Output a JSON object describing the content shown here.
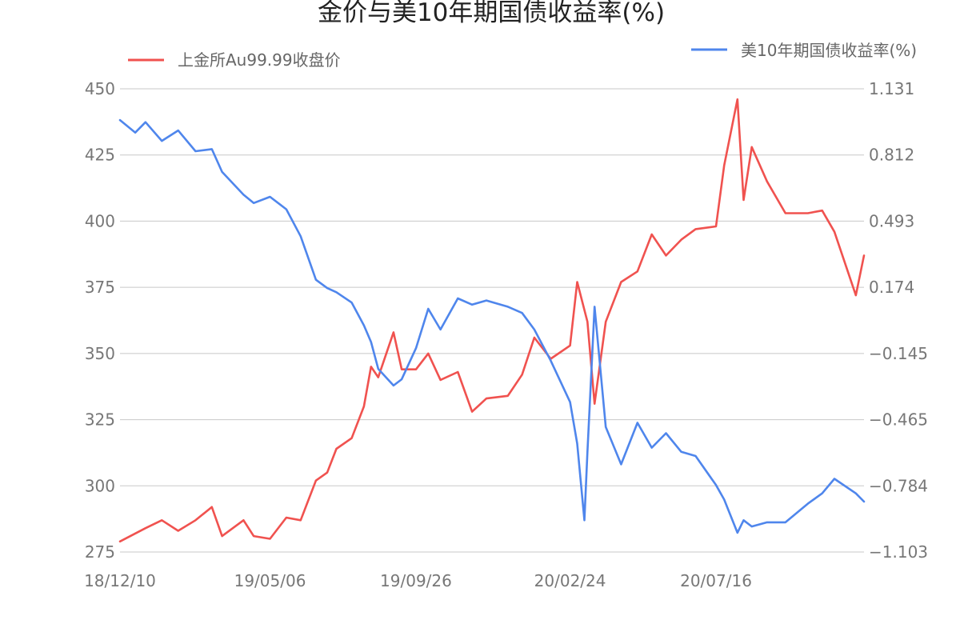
{
  "chart_data": {
    "type": "line",
    "title": "金价与美10年期国债收益率(%)",
    "x_tick_labels": [
      "18/12/10",
      "19/05/06",
      "19/09/26",
      "20/02/24",
      "20/07/16"
    ],
    "y_left": {
      "ticks": [
        "450",
        "425",
        "400",
        "375",
        "350",
        "325",
        "300",
        "275"
      ],
      "range": [
        275,
        450
      ]
    },
    "y_right": {
      "ticks": [
        "1.131",
        "0.812",
        "0.493",
        "0.174",
        "−0.145",
        "−0.465",
        "−0.784",
        "−1.103"
      ],
      "range": [
        -1.103,
        1.131
      ]
    },
    "grid": true,
    "legend": {
      "placement": "top"
    },
    "series": [
      {
        "name": "上金所Au99.99收盘价",
        "axis": "left",
        "color": "#f0524f",
        "points": [
          [
            "18/12/10",
            279
          ],
          [
            "19/01/04",
            284
          ],
          [
            "19/01/20",
            287
          ],
          [
            "19/02/05",
            283
          ],
          [
            "19/02/22",
            287
          ],
          [
            "19/03/10",
            292
          ],
          [
            "19/03/20",
            281
          ],
          [
            "19/04/10",
            287
          ],
          [
            "19/04/20",
            281
          ],
          [
            "19/05/06",
            280
          ],
          [
            "19/05/22",
            288
          ],
          [
            "19/06/05",
            287
          ],
          [
            "19/06/20",
            302
          ],
          [
            "19/07/01",
            305
          ],
          [
            "19/07/10",
            314
          ],
          [
            "19/07/25",
            318
          ],
          [
            "19/08/06",
            330
          ],
          [
            "19/08/13",
            345
          ],
          [
            "19/08/20",
            341
          ],
          [
            "19/09/04",
            358
          ],
          [
            "19/09/12",
            344
          ],
          [
            "19/09/26",
            344
          ],
          [
            "19/10/08",
            350
          ],
          [
            "19/10/20",
            340
          ],
          [
            "19/11/06",
            343
          ],
          [
            "19/11/20",
            328
          ],
          [
            "19/12/04",
            333
          ],
          [
            "19/12/25",
            334
          ],
          [
            "20/01/08",
            342
          ],
          [
            "20/01/20",
            356
          ],
          [
            "20/02/05",
            348
          ],
          [
            "20/02/24",
            353
          ],
          [
            "20/03/02",
            377
          ],
          [
            "20/03/12",
            362
          ],
          [
            "20/03/19",
            331
          ],
          [
            "20/03/30",
            362
          ],
          [
            "20/04/14",
            377
          ],
          [
            "20/04/30",
            381
          ],
          [
            "20/05/14",
            395
          ],
          [
            "20/05/28",
            387
          ],
          [
            "20/06/12",
            393
          ],
          [
            "20/06/26",
            397
          ],
          [
            "20/07/16",
            398
          ],
          [
            "20/07/24",
            421
          ],
          [
            "20/08/06",
            446
          ],
          [
            "20/08/12",
            408
          ],
          [
            "20/08/20",
            428
          ],
          [
            "20/09/04",
            415
          ],
          [
            "20/09/22",
            403
          ],
          [
            "20/10/14",
            403
          ],
          [
            "20/10/28",
            404
          ],
          [
            "20/11/09",
            396
          ],
          [
            "20/11/30",
            372
          ],
          [
            "20/12/08",
            387
          ]
        ]
      },
      {
        "name": "美10年期国债收益率(%)",
        "axis": "right",
        "color": "#4f86ec",
        "points": [
          [
            "18/12/10",
            0.98
          ],
          [
            "18/12/25",
            0.92
          ],
          [
            "19/01/04",
            0.97
          ],
          [
            "19/01/20",
            0.88
          ],
          [
            "19/02/05",
            0.93
          ],
          [
            "19/02/22",
            0.83
          ],
          [
            "19/03/10",
            0.84
          ],
          [
            "19/03/20",
            0.73
          ],
          [
            "19/04/10",
            0.62
          ],
          [
            "19/04/20",
            0.58
          ],
          [
            "19/05/06",
            0.61
          ],
          [
            "19/05/22",
            0.55
          ],
          [
            "19/06/05",
            0.42
          ],
          [
            "19/06/20",
            0.21
          ],
          [
            "19/07/01",
            0.17
          ],
          [
            "19/07/10",
            0.15
          ],
          [
            "19/07/25",
            0.1
          ],
          [
            "19/08/06",
            -0.01
          ],
          [
            "19/08/13",
            -0.09
          ],
          [
            "19/08/20",
            -0.22
          ],
          [
            "19/09/04",
            -0.3
          ],
          [
            "19/09/12",
            -0.27
          ],
          [
            "19/09/26",
            -0.12
          ],
          [
            "19/10/08",
            0.07
          ],
          [
            "19/10/20",
            -0.03
          ],
          [
            "19/11/06",
            0.12
          ],
          [
            "19/11/20",
            0.09
          ],
          [
            "19/12/04",
            0.11
          ],
          [
            "19/12/25",
            0.08
          ],
          [
            "20/01/08",
            0.05
          ],
          [
            "20/01/20",
            -0.03
          ],
          [
            "20/02/05",
            -0.18
          ],
          [
            "20/02/24",
            -0.38
          ],
          [
            "20/03/02",
            -0.58
          ],
          [
            "20/03/09",
            -0.95
          ],
          [
            "20/03/12",
            -0.62
          ],
          [
            "20/03/19",
            0.08
          ],
          [
            "20/03/30",
            -0.5
          ],
          [
            "20/04/14",
            -0.68
          ],
          [
            "20/04/30",
            -0.48
          ],
          [
            "20/05/14",
            -0.6
          ],
          [
            "20/05/28",
            -0.53
          ],
          [
            "20/06/12",
            -0.62
          ],
          [
            "20/06/26",
            -0.64
          ],
          [
            "20/07/16",
            -0.78
          ],
          [
            "20/07/24",
            -0.85
          ],
          [
            "20/08/06",
            -1.01
          ],
          [
            "20/08/12",
            -0.95
          ],
          [
            "20/08/20",
            -0.98
          ],
          [
            "20/09/04",
            -0.96
          ],
          [
            "20/09/22",
            -0.96
          ],
          [
            "20/10/14",
            -0.87
          ],
          [
            "20/10/28",
            -0.82
          ],
          [
            "20/11/09",
            -0.75
          ],
          [
            "20/11/30",
            -0.82
          ],
          [
            "20/12/08",
            -0.86
          ]
        ]
      }
    ]
  }
}
